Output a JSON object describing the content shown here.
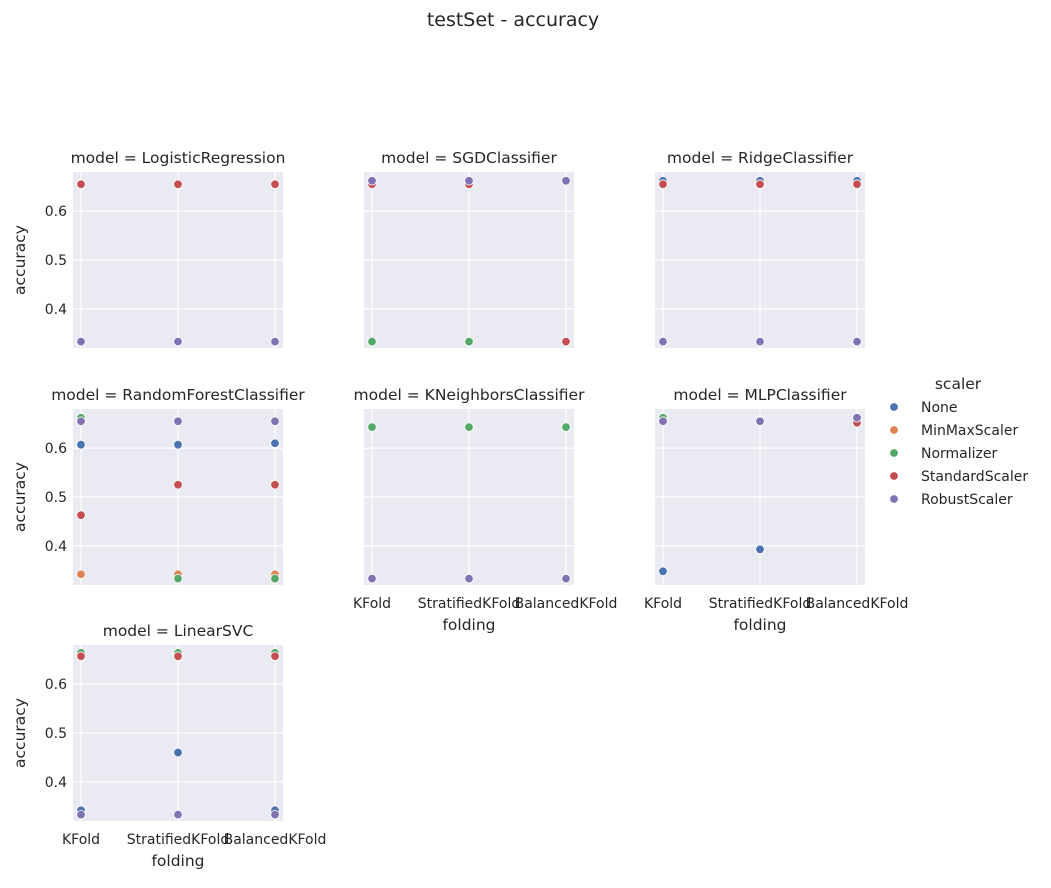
{
  "title": "testSet - accuracy",
  "colors": {
    "None": "#4c72b0",
    "MinMaxScaler": "#dd8452",
    "Normalizer": "#55a868",
    "StandardScaler": "#c44e52",
    "RobustScaler": "#8172b3"
  },
  "chart_data": {
    "type": "scatter",
    "facet_title_prefix": "model = ",
    "xlabel": "folding",
    "ylabel": "accuracy",
    "ylim": [
      0.32,
      0.68
    ],
    "yticks": [
      0.4,
      0.5,
      0.6
    ],
    "ytick_labels": [
      "0.4",
      "0.5",
      "0.6"
    ],
    "categories": [
      "KFold",
      "StratifiedKFold",
      "BalancedKFold"
    ],
    "legend": {
      "title": "scaler",
      "placement": "right",
      "entries": [
        "None",
        "MinMaxScaler",
        "Normalizer",
        "StandardScaler",
        "RobustScaler"
      ]
    },
    "grid": true,
    "facets": [
      {
        "model": "LogisticRegression",
        "series": [
          {
            "name": "None",
            "values": [
              0.655,
              0.655,
              0.655
            ]
          },
          {
            "name": "MinMaxScaler",
            "values": [
              0.655,
              0.655,
              0.655
            ]
          },
          {
            "name": "Normalizer",
            "values": [
              0.333,
              0.333,
              0.333
            ]
          },
          {
            "name": "StandardScaler",
            "values": [
              0.655,
              0.655,
              0.655
            ]
          },
          {
            "name": "RobustScaler",
            "values": [
              0.333,
              0.333,
              0.333
            ]
          }
        ]
      },
      {
        "model": "SGDClassifier",
        "series": [
          {
            "name": "None",
            "values": [
              0.655,
              0.655,
              0.333
            ]
          },
          {
            "name": "MinMaxScaler",
            "values": [
              0.655,
              0.655,
              0.333
            ]
          },
          {
            "name": "Normalizer",
            "values": [
              0.333,
              0.333,
              0.333
            ]
          },
          {
            "name": "StandardScaler",
            "values": [
              0.655,
              0.655,
              0.333
            ]
          },
          {
            "name": "RobustScaler",
            "values": [
              0.662,
              0.662,
              0.662
            ]
          }
        ]
      },
      {
        "model": "RidgeClassifier",
        "series": [
          {
            "name": "None",
            "values": [
              0.662,
              0.662,
              0.662
            ]
          },
          {
            "name": "MinMaxScaler",
            "values": [
              0.655,
              0.655,
              0.655
            ]
          },
          {
            "name": "Normalizer",
            "values": [
              0.333,
              0.333,
              0.333
            ]
          },
          {
            "name": "StandardScaler",
            "values": [
              0.655,
              0.655,
              0.655
            ]
          },
          {
            "name": "RobustScaler",
            "values": [
              0.333,
              0.333,
              0.333
            ]
          }
        ]
      },
      {
        "model": "RandomForestClassifier",
        "series": [
          {
            "name": "None",
            "values": [
              0.607,
              0.607,
              0.61
            ]
          },
          {
            "name": "MinMaxScaler",
            "values": [
              0.342,
              0.342,
              0.342
            ]
          },
          {
            "name": "Normalizer",
            "values": [
              0.662,
              0.333,
              0.333
            ]
          },
          {
            "name": "StandardScaler",
            "values": [
              0.463,
              0.525,
              0.525
            ]
          },
          {
            "name": "RobustScaler",
            "values": [
              0.655,
              0.655,
              0.655
            ]
          }
        ]
      },
      {
        "model": "KNeighborsClassifier",
        "series": [
          {
            "name": "None",
            "values": [
              0.643,
              0.643,
              0.643
            ]
          },
          {
            "name": "MinMaxScaler",
            "values": [
              0.643,
              0.643,
              0.643
            ]
          },
          {
            "name": "Normalizer",
            "values": [
              0.643,
              0.643,
              0.643
            ]
          },
          {
            "name": "StandardScaler",
            "values": [
              0.333,
              0.333,
              0.333
            ]
          },
          {
            "name": "RobustScaler",
            "values": [
              0.333,
              0.333,
              0.333
            ]
          }
        ]
      },
      {
        "model": "MLPClassifier",
        "series": [
          {
            "name": "None",
            "values": [
              0.348,
              0.393,
              0.655
            ]
          },
          {
            "name": "MinMaxScaler",
            "values": [
              0.655,
              0.655,
              0.655
            ]
          },
          {
            "name": "Normalizer",
            "values": [
              0.662,
              0.655,
              0.655
            ]
          },
          {
            "name": "StandardScaler",
            "values": [
              0.655,
              0.655,
              0.652
            ]
          },
          {
            "name": "RobustScaler",
            "values": [
              0.655,
              0.655,
              0.662
            ]
          }
        ]
      },
      {
        "model": "LinearSVC",
        "series": [
          {
            "name": "None",
            "values": [
              0.342,
              0.46,
              0.342
            ]
          },
          {
            "name": "MinMaxScaler",
            "values": [
              0.657,
              0.657,
              0.657
            ]
          },
          {
            "name": "Normalizer",
            "values": [
              0.664,
              0.664,
              0.664
            ]
          },
          {
            "name": "StandardScaler",
            "values": [
              0.657,
              0.657,
              0.657
            ]
          },
          {
            "name": "RobustScaler",
            "values": [
              0.333,
              0.333,
              0.333
            ]
          }
        ]
      }
    ]
  }
}
